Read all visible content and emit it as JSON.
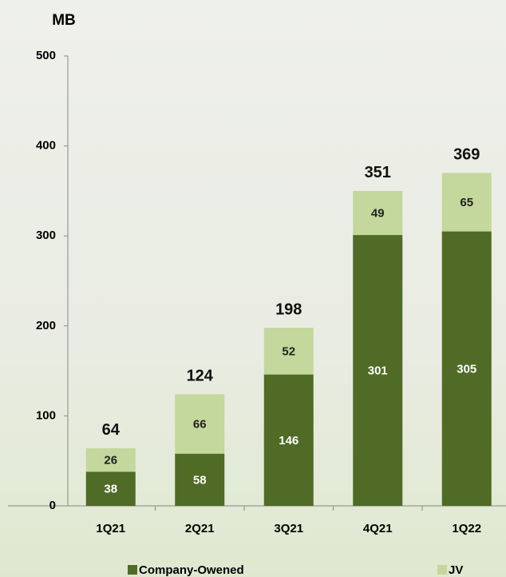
{
  "chart_data": {
    "type": "stacked_bar",
    "y_label": "MB",
    "categories": [
      "1Q21",
      "2Q21",
      "3Q21",
      "4Q21",
      "1Q22"
    ],
    "series": [
      {
        "name": "Company-Owened",
        "color": "#4f6b26",
        "values": [
          38,
          58,
          146,
          301,
          305
        ]
      },
      {
        "name": "JV",
        "color": "#c4d79c",
        "values": [
          26,
          66,
          52,
          49,
          65
        ]
      }
    ],
    "totals": [
      64,
      124,
      198,
      351,
      369
    ],
    "ylim": [
      0,
      500
    ],
    "yticks": [
      0,
      100,
      200,
      300,
      400,
      500
    ],
    "grid": false,
    "legend": "bottom"
  }
}
